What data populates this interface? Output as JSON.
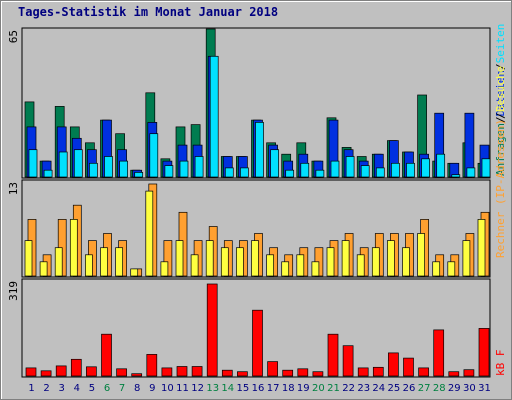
{
  "title": "Tages-Statistik im Monat Januar 2018",
  "colors": {
    "pages": "#007c50",
    "files": "#0030e0",
    "hits": "#00e0ff",
    "visits": "#ffa030",
    "sites": "#ffff40",
    "kbytes": "#ff0000",
    "weekday_label": "#000080",
    "weekend_label": "#008040"
  },
  "panels": {
    "top": {
      "max_label": "65",
      "legend": [
        {
          "text": "Anfragen",
          "color": "#007c50"
        },
        {
          "text": "/",
          "color": "#000000"
        },
        {
          "text": "Dateien",
          "color": "#0030e0"
        },
        {
          "text": "/",
          "color": "#000000"
        },
        {
          "text": "Seiten",
          "color": "#00e0ff"
        }
      ]
    },
    "middle": {
      "max_label": "13",
      "legend": [
        {
          "text": "Rechner (IP-Adressen)",
          "color": "#ffa030"
        },
        {
          "text": "/",
          "color": "#000000"
        },
        {
          "text": "Besuche",
          "color": "#ffff40"
        }
      ]
    },
    "bottom": {
      "max_label": "319",
      "legend": [
        {
          "text": "kB F",
          "color": "#ff0000"
        }
      ]
    }
  },
  "chart_data": {
    "type": "bar",
    "title": "Tages-Statistik im Monat Januar 2018",
    "categories": [
      "1",
      "2",
      "3",
      "4",
      "5",
      "6",
      "7",
      "8",
      "9",
      "10",
      "11",
      "12",
      "13",
      "14",
      "15",
      "16",
      "17",
      "18",
      "19",
      "20",
      "21",
      "22",
      "23",
      "24",
      "25",
      "26",
      "27",
      "28",
      "29",
      "30",
      "31"
    ],
    "weekend_days": [
      "6",
      "7",
      "13",
      "14",
      "20",
      "21",
      "27",
      "28"
    ],
    "panels": [
      {
        "ymax": 65,
        "series": [
          {
            "name": "Anfragen",
            "values": [
              33,
              7,
              31,
              22,
              15,
              25,
              19,
              3,
              37,
              8,
              22,
              23,
              65,
              9,
              9,
              25,
              15,
              10,
              15,
              7,
              26,
              13,
              9,
              10,
              16,
              11,
              36,
              7,
              6,
              15,
              6
            ]
          },
          {
            "name": "Dateien",
            "values": [
              22,
              7,
              22,
              17,
              12,
              25,
              12,
              3,
              24,
              7,
              14,
              14,
              53,
              9,
              9,
              25,
              14,
              7,
              10,
              7,
              25,
              12,
              7,
              10,
              16,
              11,
              10,
              28,
              6,
              28,
              14
            ]
          },
          {
            "name": "Seiten",
            "values": [
              12,
              3,
              11,
              12,
              6,
              9,
              7,
              2,
              19,
              5,
              7,
              9,
              53,
              4,
              4,
              24,
              12,
              3,
              6,
              3,
              7,
              9,
              5,
              4,
              6,
              6,
              8,
              10,
              1,
              4,
              8
            ]
          }
        ]
      },
      {
        "ymax": 13,
        "series": [
          {
            "name": "Rechner (IP-Adressen)",
            "values": [
              8,
              3,
              8,
              10,
              5,
              6,
              5,
              1,
              13,
              5,
              9,
              5,
              7,
              5,
              5,
              6,
              4,
              3,
              4,
              4,
              5,
              6,
              4,
              6,
              6,
              6,
              8,
              3,
              3,
              6,
              9
            ]
          },
          {
            "name": "Besuche",
            "values": [
              5,
              2,
              4,
              8,
              3,
              4,
              4,
              1,
              12,
              2,
              5,
              3,
              5,
              4,
              4,
              5,
              3,
              2,
              3,
              2,
              4,
              5,
              3,
              4,
              5,
              4,
              6,
              2,
              2,
              5,
              8
            ]
          }
        ]
      },
      {
        "ymax": 319,
        "series": [
          {
            "name": "kB F",
            "values": [
              28,
              18,
              35,
              58,
              32,
              145,
              25,
              8,
              75,
              28,
              33,
              33,
              319,
              20,
              15,
              228,
              50,
              20,
              25,
              15,
              145,
              105,
              28,
              30,
              80,
              62,
              28,
              160,
              15,
              22,
              165
            ]
          }
        ]
      }
    ]
  }
}
